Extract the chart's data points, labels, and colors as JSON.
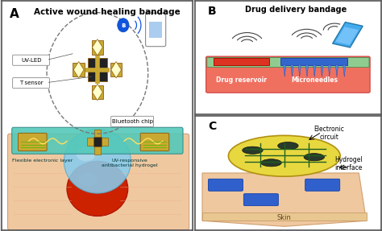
{
  "panel_a_title": "Active wound healing bandage",
  "panel_b_title": "Drug delivery bandage",
  "panel_a_label": "A",
  "panel_b_label": "B",
  "panel_c_label": "C",
  "label_uv_led": "UV-LED",
  "label_t_sensor": "T sensor",
  "label_bluetooth_chip": "Bluetooth chip",
  "label_flex_layer": "Flexible electronic layer",
  "label_uv_hydrogel": "UV-responsive\nantibacterial hydrogel",
  "label_drug_reservoir": "Drug reservoir",
  "label_microneedles": "Microneedles",
  "label_electronic_circuit": "Electronic\ncircuit",
  "label_hydrogel_interface": "Hydrogel\ninterface",
  "label_skin": "Skin",
  "bg_color": "#e8e8e8",
  "panel_bg": "#ffffff",
  "skin_color": "#f0c8a0",
  "wound_color": "#cc2200",
  "hydrogel_color": "#88ccee",
  "pcb_color": "#c8a830",
  "teal_color": "#50c8b8",
  "blue_color": "#3060cc",
  "green_circuit_color": "#206020",
  "phone_color": "#44aaee",
  "yellow_ellipse": "#e8d840",
  "drug_res_color": "#f07060",
  "needle_color": "#3366cc"
}
